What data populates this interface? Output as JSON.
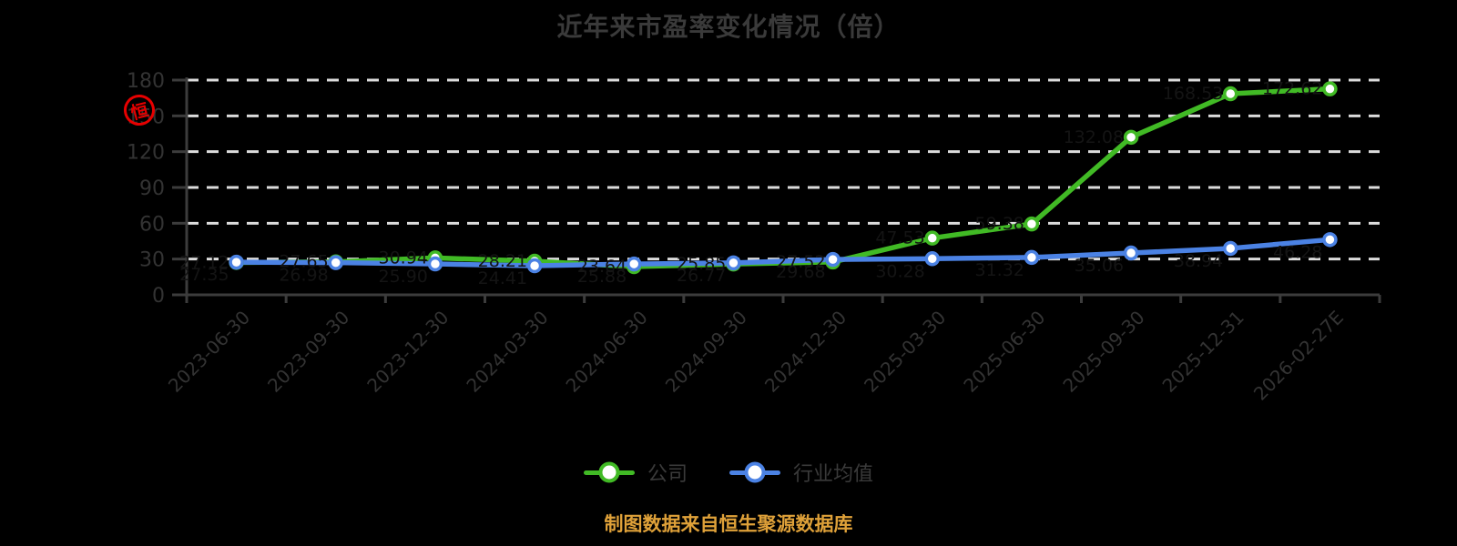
{
  "title": "近年来市盈率变化情况（倍）",
  "caption": "制图数据来自恒生聚源数据库",
  "watermark": {
    "seal_char": "恒",
    "color": "#e60000"
  },
  "colors": {
    "background": "#000000",
    "company_green": "#41ba25",
    "industry_blue": "#4b82e4",
    "grid": "#dcdcdc",
    "axis": "#3c3c3c",
    "tick_text": "#333333",
    "title_text": "#3a3a3a",
    "legend_text": "#3a3a3a",
    "caption_gold": "#dfa139",
    "point_label": "#141414",
    "marker_fill": "#ffffff"
  },
  "legend": [
    {
      "name": "公司",
      "color_key": "company_green"
    },
    {
      "name": "行业均值",
      "color_key": "industry_blue"
    }
  ],
  "chart_data": {
    "type": "line",
    "title": "近年来市盈率变化情况（倍）",
    "xlabel": "",
    "ylabel": "",
    "ylim": [
      0,
      180
    ],
    "ytick_step": 30,
    "grid": "dashed-horizontal",
    "legend_position": "bottom",
    "categories": [
      "2023-06-30",
      "2023-09-30",
      "2023-12-30",
      "2024-03-30",
      "2024-06-30",
      "2024-09-30",
      "2024-12-30",
      "2025-03-30",
      "2025-06-30",
      "2025-09-30",
      "2025-12-31",
      "2026-02-27E"
    ],
    "series": [
      {
        "name": "公司",
        "color_key": "company_green",
        "values": [
          27.12,
          27.65,
          30.94,
          28.21,
          23.64,
          25.85,
          27.52,
          47.53,
          59.38,
          132.08,
          168.53,
          172.62
        ]
      },
      {
        "name": "行业均值",
        "color_key": "industry_blue",
        "values": [
          27.35,
          26.98,
          25.9,
          24.41,
          25.88,
          26.77,
          29.68,
          30.28,
          31.32,
          35.06,
          38.94,
          46.28
        ]
      }
    ]
  }
}
